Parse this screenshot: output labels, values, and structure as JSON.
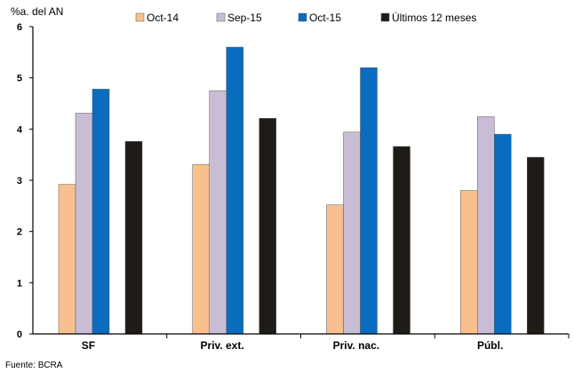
{
  "chart_data": {
    "type": "bar",
    "ylabel": "%a. del AN",
    "ylim": [
      0,
      6
    ],
    "yticks": [
      0,
      1,
      2,
      3,
      4,
      5,
      6
    ],
    "categories": [
      "SF",
      "Priv. ext.",
      "Priv. nac.",
      "Públ."
    ],
    "series": [
      {
        "name": "Oct-14",
        "color": "#f9c08f",
        "values": [
          2.92,
          3.31,
          2.52,
          2.8
        ]
      },
      {
        "name": "Sep-15",
        "color": "#c9bdd6",
        "values": [
          4.31,
          4.75,
          3.94,
          4.24
        ]
      },
      {
        "name": "Oct-15",
        "color": "#0a6cbf",
        "values": [
          4.78,
          5.6,
          5.2,
          3.9
        ]
      },
      {
        "name": "Últimos 12 meses",
        "color": "#1f1c17",
        "values": [
          3.76,
          4.21,
          3.66,
          3.45
        ]
      }
    ],
    "legend_position": "top",
    "grid": false
  },
  "source": "Fuente: BCRA"
}
